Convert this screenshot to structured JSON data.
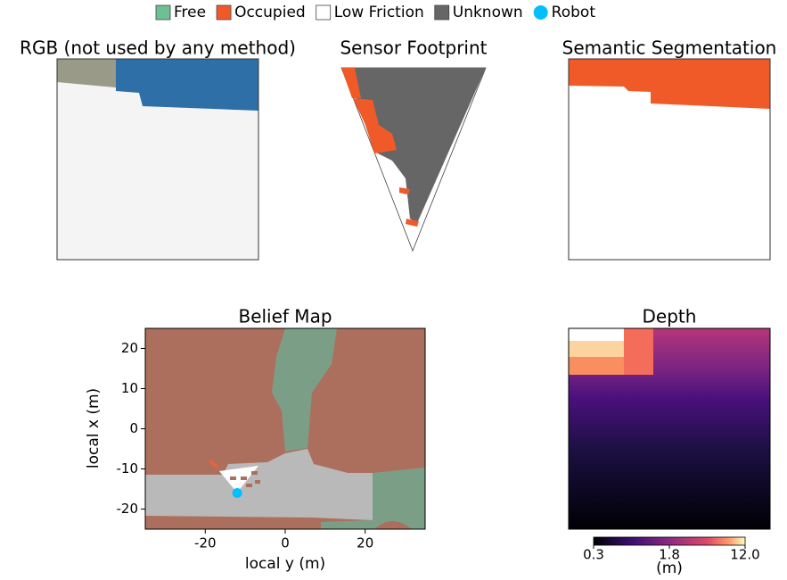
{
  "legend": [
    {
      "label": "Free",
      "color": "#6dbf94"
    },
    {
      "label": "Occupied",
      "color": "#f05a28"
    },
    {
      "label": "Low Friction",
      "color": "#ffffff"
    },
    {
      "label": "Unknown",
      "color": "#666666"
    },
    {
      "label": "Robot",
      "color": "#00bfff"
    }
  ],
  "panels": {
    "rgb": {
      "title": "RGB (not used by any method)"
    },
    "sensor": {
      "title": "Sensor Footprint"
    },
    "segmentation": {
      "title": "Semantic Segmentation"
    }
  },
  "chart_data": {
    "type": "map",
    "title": "Belief Map",
    "xlabel": "local y (m)",
    "ylabel": "local x (m)",
    "xlim": [
      -35,
      35
    ],
    "ylim": [
      -25,
      25
    ],
    "xticks": [
      -20,
      0,
      20
    ],
    "yticks": [
      20,
      10,
      0,
      -10,
      -20
    ],
    "robot": {
      "x": -12,
      "y": -16,
      "color": "#00bfff"
    }
  },
  "depth": {
    "title": "Depth",
    "colorbar": {
      "lim": [
        0.3,
        12
      ],
      "ticks": [
        0.3,
        1.8,
        {
          "value": 12,
          "label": "12.0"
        }
      ],
      "label": "(m)"
    }
  }
}
